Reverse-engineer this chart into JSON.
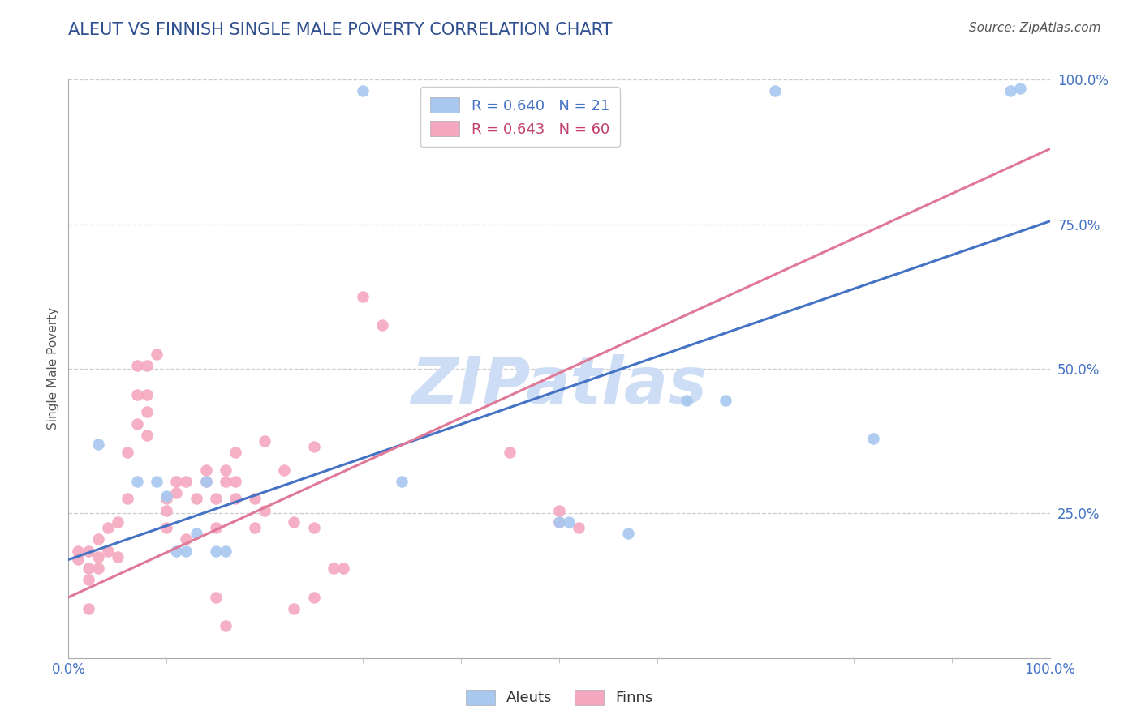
{
  "title": "ALEUT VS FINNISH SINGLE MALE POVERTY CORRELATION CHART",
  "source": "Source: ZipAtlas.com",
  "ylabel": "Single Male Poverty",
  "xlim": [
    0,
    1
  ],
  "ylim": [
    0,
    1
  ],
  "y_tick_positions": [
    0.25,
    0.5,
    0.75,
    1.0
  ],
  "y_tick_labels": [
    "25.0%",
    "50.0%",
    "75.0%",
    "100.0%"
  ],
  "aleut_R": 0.64,
  "aleut_N": 21,
  "finn_R": 0.643,
  "finn_N": 60,
  "aleut_color": "#a8c8f0",
  "finn_color": "#f4a8c0",
  "aleut_line_color": "#4472c4",
  "finn_line_color": "#e07898",
  "aleut_line": [
    0.0,
    0.17,
    1.0,
    0.755
  ],
  "finn_line": [
    0.0,
    0.105,
    1.0,
    0.88
  ],
  "watermark": "ZIPatlas",
  "watermark_color": "#ccddf5",
  "aleut_scatter": [
    [
      0.3,
      0.98
    ],
    [
      0.72,
      0.98
    ],
    [
      0.96,
      0.98
    ],
    [
      0.97,
      0.985
    ],
    [
      0.03,
      0.37
    ],
    [
      0.07,
      0.305
    ],
    [
      0.09,
      0.305
    ],
    [
      0.1,
      0.28
    ],
    [
      0.11,
      0.185
    ],
    [
      0.12,
      0.185
    ],
    [
      0.13,
      0.215
    ],
    [
      0.14,
      0.305
    ],
    [
      0.15,
      0.185
    ],
    [
      0.16,
      0.185
    ],
    [
      0.34,
      0.305
    ],
    [
      0.5,
      0.235
    ],
    [
      0.51,
      0.235
    ],
    [
      0.63,
      0.445
    ],
    [
      0.67,
      0.445
    ],
    [
      0.82,
      0.38
    ],
    [
      0.57,
      0.215
    ]
  ],
  "finn_scatter": [
    [
      0.01,
      0.185
    ],
    [
      0.01,
      0.17
    ],
    [
      0.02,
      0.155
    ],
    [
      0.02,
      0.135
    ],
    [
      0.02,
      0.185
    ],
    [
      0.03,
      0.175
    ],
    [
      0.03,
      0.155
    ],
    [
      0.03,
      0.205
    ],
    [
      0.04,
      0.185
    ],
    [
      0.04,
      0.225
    ],
    [
      0.05,
      0.175
    ],
    [
      0.05,
      0.235
    ],
    [
      0.06,
      0.275
    ],
    [
      0.06,
      0.355
    ],
    [
      0.07,
      0.405
    ],
    [
      0.07,
      0.505
    ],
    [
      0.07,
      0.455
    ],
    [
      0.08,
      0.505
    ],
    [
      0.08,
      0.455
    ],
    [
      0.08,
      0.425
    ],
    [
      0.08,
      0.385
    ],
    [
      0.09,
      0.525
    ],
    [
      0.1,
      0.275
    ],
    [
      0.1,
      0.225
    ],
    [
      0.1,
      0.255
    ],
    [
      0.11,
      0.305
    ],
    [
      0.11,
      0.285
    ],
    [
      0.12,
      0.305
    ],
    [
      0.12,
      0.205
    ],
    [
      0.13,
      0.275
    ],
    [
      0.14,
      0.325
    ],
    [
      0.14,
      0.305
    ],
    [
      0.15,
      0.275
    ],
    [
      0.15,
      0.225
    ],
    [
      0.16,
      0.305
    ],
    [
      0.16,
      0.325
    ],
    [
      0.17,
      0.305
    ],
    [
      0.17,
      0.355
    ],
    [
      0.17,
      0.275
    ],
    [
      0.19,
      0.275
    ],
    [
      0.19,
      0.225
    ],
    [
      0.2,
      0.255
    ],
    [
      0.2,
      0.375
    ],
    [
      0.22,
      0.325
    ],
    [
      0.23,
      0.235
    ],
    [
      0.25,
      0.365
    ],
    [
      0.25,
      0.225
    ],
    [
      0.27,
      0.155
    ],
    [
      0.28,
      0.155
    ],
    [
      0.3,
      0.625
    ],
    [
      0.32,
      0.575
    ],
    [
      0.45,
      0.355
    ],
    [
      0.5,
      0.255
    ],
    [
      0.5,
      0.235
    ],
    [
      0.52,
      0.225
    ],
    [
      0.15,
      0.105
    ],
    [
      0.25,
      0.105
    ],
    [
      0.23,
      0.085
    ],
    [
      0.16,
      0.055
    ],
    [
      0.02,
      0.085
    ]
  ],
  "background_color": "#ffffff",
  "grid_color": "#cccccc",
  "title_color": "#2f4f8f",
  "tick_label_color": "#4472c4",
  "legend_aleut_text_color": "#4472c4",
  "legend_finn_text_color": "#c04070"
}
